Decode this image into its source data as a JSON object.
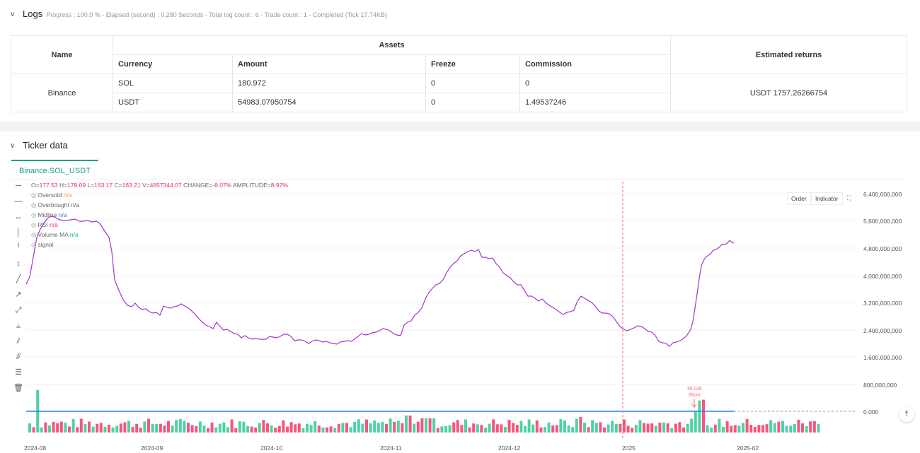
{
  "logs": {
    "title": "Logs",
    "status": "Progress : 100.0 % - Elapsed (second) : 0.280  Seconds - Total log count : 6 - Trade count : 1 - Completed (Tick 17.74KB)",
    "table": {
      "header_name": "Name",
      "header_assets": "Assets",
      "header_returns": "Estimated returns",
      "sub_headers": [
        "Currency",
        "Amount",
        "Freeze",
        "Commission"
      ],
      "exchange": "Binance",
      "rows": [
        [
          "SOL",
          "180.972",
          "0",
          "0"
        ],
        [
          "USDT",
          "54983.07950754",
          "0",
          "1.49537246"
        ]
      ],
      "estimated_returns": "USDT 1757.26266754"
    }
  },
  "ticker": {
    "title": "Ticker data",
    "tab": "Binance.SOL_USDT",
    "ohlc_line": {
      "o_label": "O=",
      "o": "177.53",
      "h_label": "H=",
      "h": "179.09",
      "l_label": "L=",
      "l": "163.17",
      "c_label": "C=",
      "c": "163.21",
      "v_label": "V=",
      "v": "4857344.07",
      "change_label": "CHANGE=",
      "change": "-8.07%",
      "amp_label": "AMPLITUDE=",
      "amplitude": "8.97%"
    },
    "legend": [
      {
        "name": "Oversold",
        "value": "n/a",
        "color": "#f5a623"
      },
      {
        "name": "Overbought",
        "value": "n/a",
        "color": "#666666"
      },
      {
        "name": "Midline",
        "value": "n/a",
        "color": "#2f7ce5"
      },
      {
        "name": "RSI",
        "value": "n/a",
        "color": "#e0335e"
      },
      {
        "name": "Volume MA",
        "value": "n/a",
        "color": "#20b2aa"
      },
      {
        "name": "signal",
        "value": "",
        "color": "#666666"
      }
    ],
    "buttons": {
      "order": "Order",
      "indicator": "Indicator"
    },
    "y_axis": [
      "6,400,000,000",
      "5,600,000,000",
      "4,800,000,000",
      "4,000,000,000",
      "3,200,000,000",
      "2,400,000,000",
      "1,600,000,000",
      "800,000,000",
      "0.000"
    ],
    "x_axis": [
      "2024-08",
      "2024-09",
      "2024-10",
      "2024-11",
      "2024-12",
      "2025",
      "2025-02"
    ],
    "signal": {
      "price": "19.028",
      "label": "Short"
    },
    "colors": {
      "line": "#a335c9",
      "up": "#4fd1a5",
      "down": "#f5567d",
      "midline": "#2f7ce5",
      "dashed": "#f26b6b"
    }
  }
}
